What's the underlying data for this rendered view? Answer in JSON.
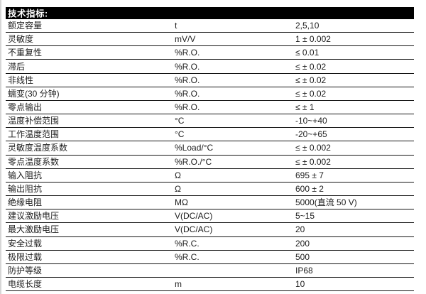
{
  "header": {
    "title": "技术指标:"
  },
  "colors": {
    "header_bg": "#000000",
    "header_text": "#ffffff",
    "text": "#1c1c1c",
    "border": "#151515"
  },
  "table": {
    "rows": [
      {
        "name": "额定容量",
        "unit": "t",
        "value": "2,5,10"
      },
      {
        "name": "灵敏度",
        "unit": "mV/V",
        "value": "1 ± 0.002"
      },
      {
        "name": "不重复性",
        "unit": "%R.O.",
        "value": "≤ 0.01"
      },
      {
        "name": "滞后",
        "unit": "%R.O.",
        "value": "≤ ± 0.02"
      },
      {
        "name": "非线性",
        "unit": "%R.O.",
        "value": "≤ ± 0.02"
      },
      {
        "name": "蠕变(30 分钟)",
        "unit": "%R.O.",
        "value": "≤ ± 0.02"
      },
      {
        "name": "零点输出",
        "unit": "%R.O.",
        "value": "≤ ± 1"
      },
      {
        "name": "温度补偿范围",
        "unit": "°C",
        "value": "-10~+40"
      },
      {
        "name": "工作温度范围",
        "unit": "°C",
        "value": "-20~+65"
      },
      {
        "name": "灵敏度温度系数",
        "unit": "%Load/°C",
        "value": "≤ ± 0.002"
      },
      {
        "name": "零点温度系数",
        "unit": "%R.O./°C",
        "value": "≤ ± 0.002"
      },
      {
        "name": "输入阻抗",
        "unit": "Ω",
        "value": "695 ± 7"
      },
      {
        "name": "输出阻抗",
        "unit": "Ω",
        "value": "600 ± 2"
      },
      {
        "name": "绝缘电阻",
        "unit": "MΩ",
        "value": "5000(直流 50 V)"
      },
      {
        "name": "建议激励电压",
        "unit": "V(DC/AC)",
        "value": "5~15"
      },
      {
        "name": "最大激励电压",
        "unit": "V(DC/AC)",
        "value": "20"
      },
      {
        "name": "安全过载",
        "unit": "%R.C.",
        "value": "200"
      },
      {
        "name": "极限过载",
        "unit": "%R.C.",
        "value": "500"
      },
      {
        "name": "防护等级",
        "unit": "",
        "value": "IP68"
      },
      {
        "name": "电缆长度",
        "unit": "m",
        "value": "10"
      }
    ]
  }
}
